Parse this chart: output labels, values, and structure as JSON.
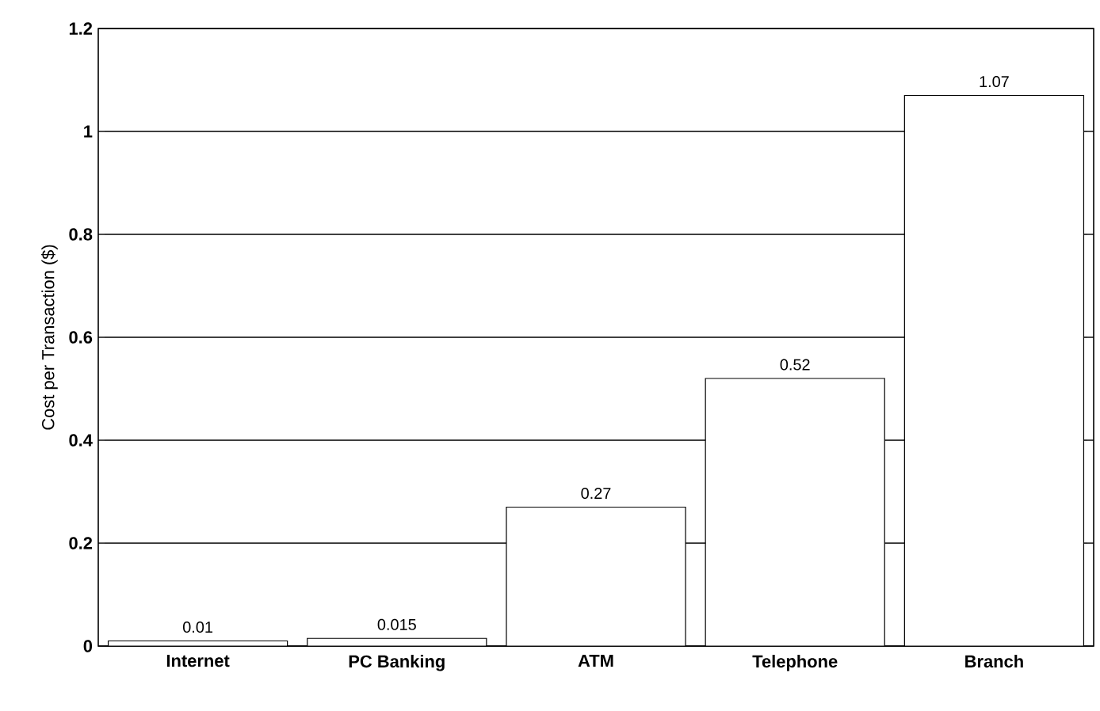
{
  "chart_data": {
    "type": "bar",
    "ylabel": "Cost per Transaction ($)",
    "categories": [
      "Internet",
      "PC Banking",
      "ATM",
      "Telephone",
      "Branch"
    ],
    "values": [
      0.01,
      0.015,
      0.27,
      0.52,
      1.07
    ],
    "color": "#ffffff",
    "ylim": [
      0,
      1.2
    ],
    "yticks": [
      0,
      0.2,
      0.4,
      0.6,
      0.8,
      1,
      1.2
    ],
    "grid": "y",
    "data_labels": true
  }
}
